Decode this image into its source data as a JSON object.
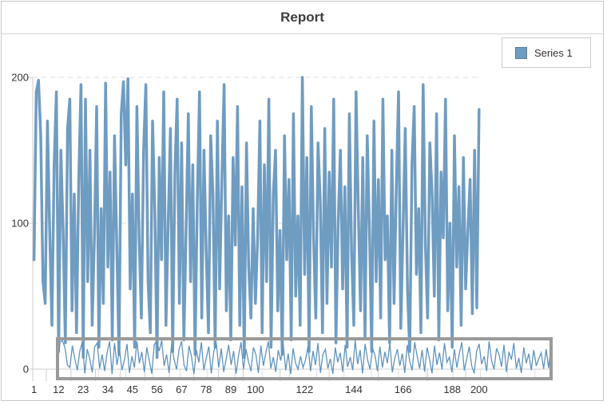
{
  "window": {
    "title_label": "Report"
  },
  "legend": {
    "position": "top-right",
    "items": [
      {
        "label": "Series 1",
        "marker_color": "#6f9cc1",
        "marker_border": "#5a7b96"
      }
    ]
  },
  "colors": {
    "series": "#6f9cc1",
    "navigator_line": "#5f93bd",
    "selection_border": "#9a9a9a",
    "axis": "#cccccc",
    "grid": "#dcdcdc",
    "nav_tick": "#dddddd",
    "label": "#333333",
    "title": "#3d3d3d"
  },
  "chart_data": {
    "type": "line",
    "title": "Report",
    "xlabel": "",
    "ylabel": "",
    "ylim": [
      0,
      200
    ],
    "y_ticks": [
      0,
      100,
      200
    ],
    "grid": "horizontal-dashed-at-100-and-200",
    "legend_position": "top-right",
    "x_label_categories": [
      1,
      12,
      23,
      34,
      45,
      56,
      67,
      78,
      89,
      100,
      122,
      144,
      166,
      188,
      200
    ],
    "x_tick_labels": [
      "1",
      "12",
      "23",
      "34",
      "45",
      "56",
      "67",
      "78",
      "89",
      "100",
      "122",
      "144",
      "166",
      "188",
      "200"
    ],
    "navigator": {
      "present": true,
      "range": [
        1,
        200
      ],
      "description": "thin preview line with full-range selection box"
    },
    "categories_count": 200,
    "series": [
      {
        "name": "Series 1",
        "values": [
          75,
          190,
          198,
          160,
          60,
          45,
          170,
          95,
          30,
          140,
          190,
          12,
          150,
          95,
          18,
          165,
          185,
          40,
          120,
          25,
          130,
          195,
          8,
          185,
          60,
          150,
          30,
          90,
          180,
          15,
          110,
          45,
          196,
          70,
          135,
          20,
          160,
          85,
          10,
          175,
          197,
          140,
          199,
          55,
          120,
          15,
          180,
          90,
          35,
          150,
          195,
          60,
          25,
          170,
          110,
          8,
          145,
          75,
          190,
          30,
          100,
          165,
          12,
          135,
          185,
          45,
          155,
          20,
          95,
          175,
          60,
          140,
          10,
          115,
          190,
          35,
          150,
          80,
          25,
          160,
          120,
          15,
          170,
          55,
          130,
          195,
          40,
          105,
          20,
          145,
          85,
          180,
          30,
          125,
          8,
          155,
          70,
          35,
          110,
          45,
          90,
          170,
          25,
          140,
          60,
          185,
          15,
          120,
          150,
          40,
          95,
          10,
          160,
          75,
          130,
          20,
          175,
          50,
          105,
          30,
          200,
          65,
          145,
          12,
          180,
          90,
          35,
          155,
          115,
          25,
          165,
          45,
          135,
          70,
          185,
          18,
          100,
          150,
          55,
          125,
          15,
          175,
          80,
          30,
          190,
          110,
          40,
          145,
          22,
          160,
          95,
          12,
          170,
          60,
          130,
          35,
          185,
          75,
          105,
          18,
          150,
          45,
          125,
          190,
          28,
          95,
          165,
          55,
          12,
          140,
          180,
          65,
          110,
          25,
          195,
          85,
          35,
          155,
          120,
          50,
          175,
          20,
          135,
          90,
          185,
          40,
          100,
          15,
          160,
          70,
          125,
          30,
          145,
          55,
          95,
          130,
          38,
          150,
          42,
          178
        ]
      }
    ]
  }
}
